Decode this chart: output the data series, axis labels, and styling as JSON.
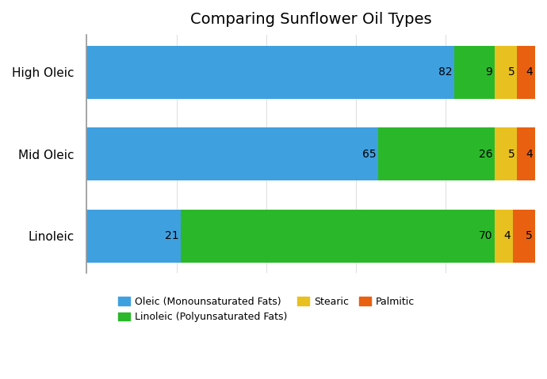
{
  "title": "Comparing Sunflower Oil Types",
  "categories": [
    "High Oleic",
    "Mid Oleic",
    "Linoleic"
  ],
  "series": [
    {
      "name": "Oleic (Monounsaturated Fats)",
      "values": [
        82,
        65,
        21
      ],
      "color": "#3fa0e0"
    },
    {
      "name": "Linoleic (Polyunsaturated Fats)",
      "values": [
        9,
        26,
        70
      ],
      "color": "#2ab82a"
    },
    {
      "name": "Stearic",
      "values": [
        5,
        5,
        4
      ],
      "color": "#e8c020"
    },
    {
      "name": "Palmitic",
      "values": [
        4,
        4,
        5
      ],
      "color": "#e86010"
    }
  ],
  "label_color": "#000000",
  "background_color": "#ffffff",
  "title_fontsize": 14,
  "label_fontsize": 10,
  "legend_fontsize": 9,
  "bar_height": 0.65,
  "xlim": [
    0,
    100
  ],
  "grid_color": "#e0e0e0",
  "spine_color": "#999999"
}
